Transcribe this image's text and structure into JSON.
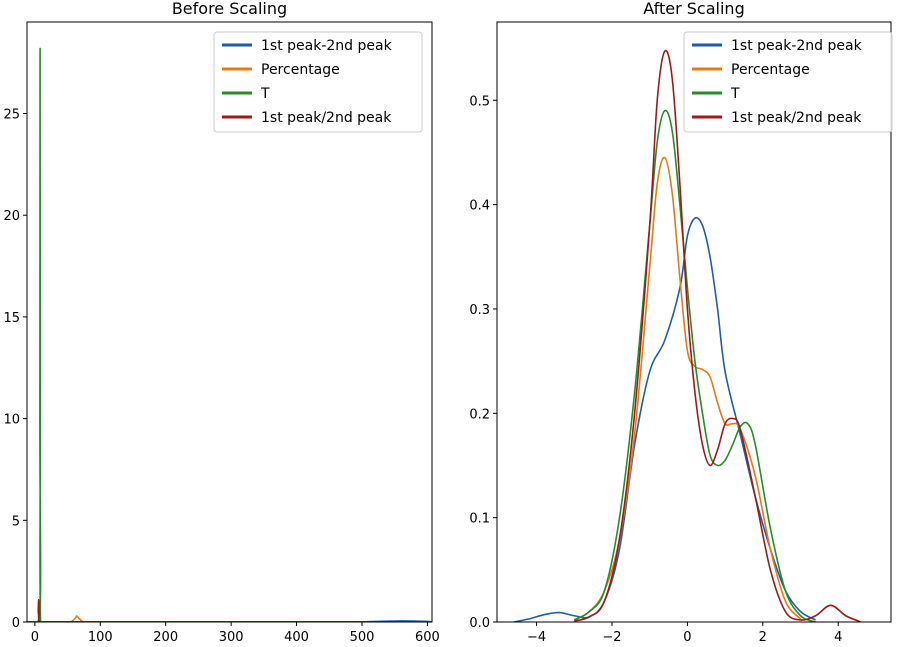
{
  "chart_data": [
    {
      "type": "line",
      "title": "Before Scaling",
      "xlabel": "",
      "ylabel": "",
      "xlim": [
        -12,
        607
      ],
      "ylim": [
        0,
        29.5
      ],
      "x_ticks": [
        0,
        100,
        200,
        300,
        400,
        500,
        600
      ],
      "x_tick_labels": [
        "0",
        "100",
        "200",
        "300",
        "400",
        "500",
        "600"
      ],
      "y_ticks": [
        0,
        5,
        10,
        15,
        20,
        25
      ],
      "y_tick_labels": [
        "0",
        "5",
        "10",
        "15",
        "20",
        "25"
      ],
      "legend_position": "top-right",
      "grid": false,
      "series": [
        {
          "name": "1st peak-2nd peak",
          "color": "#1f5fa0",
          "x": [
            -12,
            100,
            300,
            480,
            520,
            560,
            600,
            607
          ],
          "y": [
            0,
            0,
            0,
            0,
            0.03,
            0.05,
            0.03,
            0
          ]
        },
        {
          "name": "Percentage",
          "color": "#e07b1a",
          "x": [
            -12,
            50,
            57,
            62,
            64,
            67,
            72,
            80,
            200,
            607
          ],
          "y": [
            0,
            0,
            0.05,
            0.2,
            0.3,
            0.2,
            0.05,
            0,
            0,
            0
          ]
        },
        {
          "name": "T",
          "color": "#2a8a2a",
          "x": [
            -12,
            7.2,
            7.7,
            8.0,
            8.3,
            8.8,
            20,
            607
          ],
          "y": [
            0,
            0,
            10,
            28.2,
            10,
            0,
            0,
            0
          ]
        },
        {
          "name": "1st peak/2nd peak",
          "color": "#9b1b1b",
          "x": [
            -12,
            4.5,
            5.2,
            5.8,
            6.5,
            7.2,
            20,
            607
          ],
          "y": [
            0,
            0,
            0.6,
            1.1,
            0.6,
            0,
            0,
            0
          ]
        }
      ]
    },
    {
      "type": "line",
      "title": "After Scaling",
      "xlabel": "",
      "ylabel": "",
      "xlim": [
        -5.05,
        5.4
      ],
      "ylim": [
        0,
        0.575
      ],
      "x_ticks": [
        -4,
        -2,
        0,
        2,
        4
      ],
      "x_tick_labels": [
        "−4",
        "−2",
        "0",
        "2",
        "4"
      ],
      "y_ticks": [
        0.0,
        0.1,
        0.2,
        0.3,
        0.4,
        0.5
      ],
      "y_tick_labels": [
        "0.0",
        "0.1",
        "0.2",
        "0.3",
        "0.4",
        "0.5"
      ],
      "legend_position": "top-right",
      "grid": false,
      "series": [
        {
          "name": "1st peak-2nd peak",
          "color": "#1f5fa0",
          "x": [
            -4.6,
            -4.2,
            -3.8,
            -3.4,
            -3.0,
            -2.6,
            -2.2,
            -1.8,
            -1.4,
            -1.0,
            -0.6,
            -0.2,
            0.0,
            0.2,
            0.4,
            0.6,
            0.8,
            1.0,
            1.4,
            1.8,
            2.2,
            2.6,
            3.0,
            3.4
          ],
          "y": [
            0.0,
            0.003,
            0.007,
            0.009,
            0.006,
            0.005,
            0.02,
            0.07,
            0.17,
            0.24,
            0.27,
            0.32,
            0.37,
            0.387,
            0.38,
            0.35,
            0.3,
            0.24,
            0.18,
            0.12,
            0.07,
            0.03,
            0.01,
            0.002
          ]
        },
        {
          "name": "Percentage",
          "color": "#e07b1a",
          "x": [
            -3.0,
            -2.6,
            -2.2,
            -1.8,
            -1.4,
            -1.0,
            -0.8,
            -0.6,
            -0.4,
            -0.2,
            0.0,
            0.2,
            0.4,
            0.6,
            0.8,
            1.0,
            1.2,
            1.4,
            1.8,
            2.2,
            2.6,
            3.0
          ],
          "y": [
            0.002,
            0.01,
            0.03,
            0.08,
            0.18,
            0.34,
            0.42,
            0.445,
            0.41,
            0.33,
            0.26,
            0.245,
            0.242,
            0.235,
            0.21,
            0.19,
            0.19,
            0.185,
            0.14,
            0.07,
            0.02,
            0.003
          ]
        },
        {
          "name": "T",
          "color": "#2a8a2a",
          "x": [
            -3.0,
            -2.6,
            -2.2,
            -1.8,
            -1.4,
            -1.0,
            -0.8,
            -0.6,
            -0.4,
            -0.2,
            0.0,
            0.2,
            0.4,
            0.6,
            0.8,
            1.0,
            1.2,
            1.4,
            1.6,
            1.8,
            2.2,
            2.6,
            3.0,
            3.4
          ],
          "y": [
            0.002,
            0.01,
            0.03,
            0.1,
            0.22,
            0.38,
            0.46,
            0.49,
            0.47,
            0.4,
            0.32,
            0.25,
            0.2,
            0.16,
            0.15,
            0.155,
            0.17,
            0.187,
            0.19,
            0.17,
            0.09,
            0.03,
            0.006,
            0.0
          ]
        },
        {
          "name": "1st peak/2nd peak",
          "color": "#9b1b1b",
          "x": [
            -3.0,
            -2.6,
            -2.2,
            -1.8,
            -1.4,
            -1.0,
            -0.8,
            -0.6,
            -0.4,
            -0.2,
            0.0,
            0.2,
            0.4,
            0.6,
            0.8,
            1.0,
            1.2,
            1.4,
            1.8,
            2.2,
            2.6,
            3.0,
            3.4,
            3.8,
            4.2,
            4.6
          ],
          "y": [
            0.001,
            0.005,
            0.02,
            0.08,
            0.2,
            0.38,
            0.5,
            0.547,
            0.52,
            0.42,
            0.3,
            0.22,
            0.17,
            0.15,
            0.165,
            0.19,
            0.195,
            0.185,
            0.12,
            0.05,
            0.01,
            0.002,
            0.006,
            0.016,
            0.006,
            0.0
          ]
        }
      ]
    }
  ]
}
